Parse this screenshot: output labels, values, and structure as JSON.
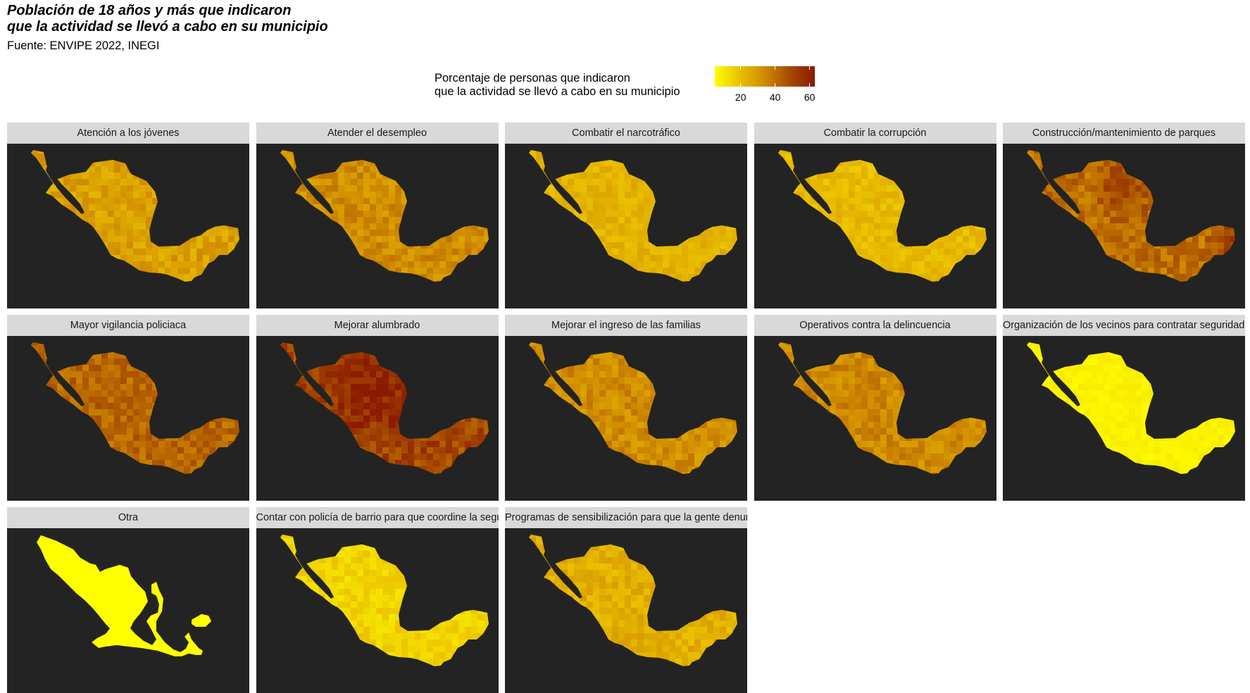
{
  "title_lines": [
    "Población de 18 años y más que indicaron",
    "que la actividad se llevó a cabo en su municipio"
  ],
  "source": "Fuente: ENVIPE 2022, INEGI",
  "legend": {
    "title_lines": [
      "Porcentaje de personas que indicaron",
      "que la actividad se llevó a cabo en su municipio"
    ],
    "ticks": [
      {
        "label": "20",
        "value": 20
      },
      {
        "label": "40",
        "value": 40
      },
      {
        "label": "60",
        "value": 60
      }
    ],
    "min": 5,
    "max": 63,
    "colors": [
      "#ffff00",
      "#eac000",
      "#cf8a00",
      "#a54a00",
      "#8b1a00"
    ]
  },
  "panels": [
    {
      "label": "Atención a los jóvenes",
      "level": 28,
      "variation": 6,
      "spike": ""
    },
    {
      "label": "Atender el desempleo",
      "level": 33,
      "variation": 6,
      "spike": ""
    },
    {
      "label": "Combatir el narcotráfico",
      "level": 23,
      "variation": 4,
      "spike": ""
    },
    {
      "label": "Combatir la corrupción",
      "level": 21,
      "variation": 4,
      "spike": ""
    },
    {
      "label": "Construcción/mantenimiento de parques",
      "level": 40,
      "variation": 7,
      "spike": "northeast-yucatan"
    },
    {
      "label": "Mayor vigilancia policiaca",
      "level": 42,
      "variation": 6,
      "spike": ""
    },
    {
      "label": "Mejorar alumbrado",
      "level": 50,
      "variation": 8,
      "spike": "north"
    },
    {
      "label": "Mejorar el ingreso de las familias",
      "level": 33,
      "variation": 6,
      "spike": ""
    },
    {
      "label": "Operativos contra la delincuencia",
      "level": 34,
      "variation": 6,
      "spike": ""
    },
    {
      "label": "Organización de los vecinos para contratar seguridad privada",
      "level": 8,
      "variation": 2,
      "spike": ""
    },
    {
      "label": "Otra",
      "level": 5,
      "variation": 0,
      "spike": ""
    },
    {
      "label": "Contar con policía de barrio para que coordine la seguridad de la colonia",
      "level": 15,
      "variation": 4,
      "spike": ""
    },
    {
      "label": "Programas de sensibilización para que la gente denuncie",
      "level": 24,
      "variation": 5,
      "spike": ""
    }
  ]
}
